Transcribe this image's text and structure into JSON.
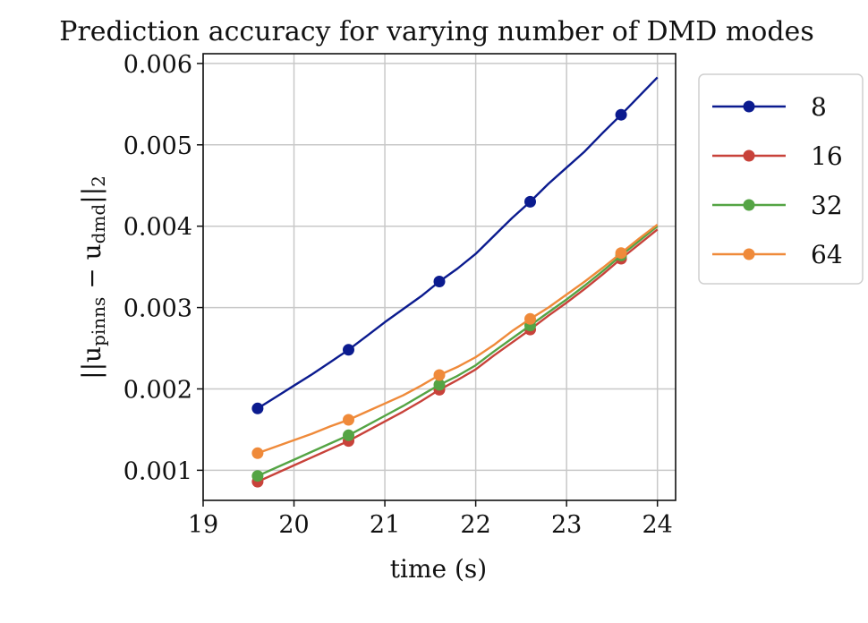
{
  "chart_data": {
    "type": "line",
    "title": "Prediction accuracy for varying number of DMD modes",
    "xlabel": "time (s)",
    "ylabel_parts": [
      "||u",
      "pinns",
      " − u",
      "dmd",
      "||",
      "2"
    ],
    "xlim": [
      19,
      24.2
    ],
    "ylim": [
      0.00063,
      0.00612
    ],
    "xticks": [
      19,
      20,
      21,
      22,
      23,
      24
    ],
    "yticks": [
      0.001,
      0.002,
      0.003,
      0.004,
      0.005,
      0.006
    ],
    "xtick_labels": [
      "19",
      "20",
      "21",
      "22",
      "23",
      "24"
    ],
    "ytick_labels": [
      "0.001",
      "0.002",
      "0.003",
      "0.004",
      "0.005",
      "0.006"
    ],
    "grid": true,
    "legend_position": "outside-right-top",
    "x": [
      19.6,
      19.8,
      20.0,
      20.2,
      20.4,
      20.6,
      20.8,
      21.0,
      21.2,
      21.4,
      21.6,
      21.8,
      22.0,
      22.2,
      22.4,
      22.6,
      22.8,
      23.0,
      23.2,
      23.4,
      23.6,
      23.8,
      24.0
    ],
    "marker_x": [
      19.6,
      20.6,
      21.6,
      22.6,
      23.6
    ],
    "series": [
      {
        "name": "8",
        "color": "#0b1b8f",
        "values": [
          0.00176,
          0.0019,
          0.00204,
          0.00218,
          0.00233,
          0.00248,
          0.00265,
          0.00282,
          0.00298,
          0.00314,
          0.00332,
          0.00348,
          0.00366,
          0.00388,
          0.0041,
          0.0043,
          0.00452,
          0.00472,
          0.00492,
          0.00515,
          0.00537,
          0.0056,
          0.00583
        ]
      },
      {
        "name": "16",
        "color": "#c8423a",
        "values": [
          0.00086,
          0.00096,
          0.00106,
          0.00116,
          0.00126,
          0.00136,
          0.00148,
          0.0016,
          0.00172,
          0.00185,
          0.00199,
          0.00211,
          0.00224,
          0.00241,
          0.00257,
          0.00273,
          0.0029,
          0.00306,
          0.00323,
          0.00341,
          0.0036,
          0.00378,
          0.00396
        ]
      },
      {
        "name": "32",
        "color": "#54a444",
        "values": [
          0.00093,
          0.00103,
          0.00113,
          0.00123,
          0.00133,
          0.00143,
          0.00155,
          0.00167,
          0.00179,
          0.00192,
          0.00205,
          0.00216,
          0.00229,
          0.00246,
          0.00262,
          0.00278,
          0.00294,
          0.0031,
          0.00327,
          0.00345,
          0.00364,
          0.00382,
          0.004
        ]
      },
      {
        "name": "64",
        "color": "#ef8a3a",
        "values": [
          0.00121,
          0.00129,
          0.00137,
          0.00145,
          0.00154,
          0.00162,
          0.00172,
          0.00182,
          0.00192,
          0.00204,
          0.00217,
          0.00227,
          0.00239,
          0.00254,
          0.00271,
          0.00286,
          0.003,
          0.00316,
          0.00332,
          0.00349,
          0.00367,
          0.00385,
          0.00402
        ]
      }
    ]
  }
}
